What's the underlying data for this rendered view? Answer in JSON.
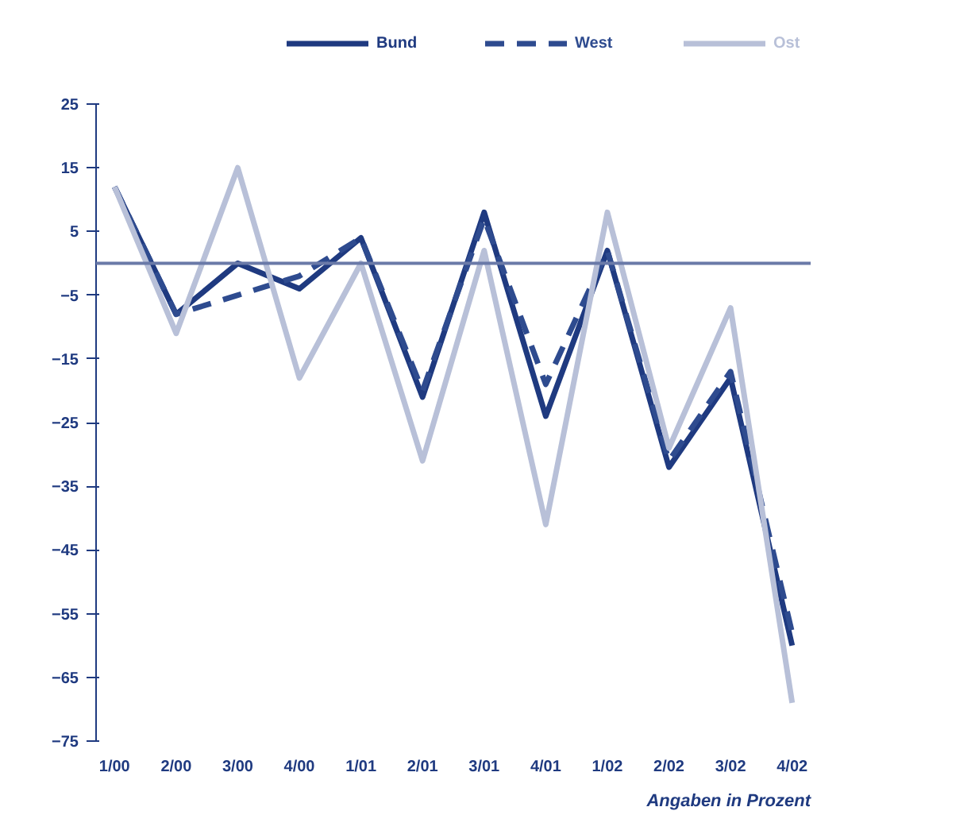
{
  "chart_data": {
    "type": "line",
    "categories": [
      "1/00",
      "2/00",
      "3/00",
      "4/00",
      "1/01",
      "2/01",
      "3/01",
      "4/01",
      "1/02",
      "2/02",
      "3/02",
      "4/02"
    ],
    "series": [
      {
        "name": "Bund",
        "color": "#1f3a80",
        "line_style": "solid",
        "values": [
          12,
          -8,
          0,
          -4,
          4,
          -21,
          8,
          -24,
          2,
          -32,
          -18,
          -60
        ]
      },
      {
        "name": "West",
        "color": "#2e4b8f",
        "line_style": "dashed",
        "values": [
          12,
          -8,
          -5,
          -2,
          4,
          -20,
          7,
          -19,
          2,
          -31,
          -17,
          -58
        ]
      },
      {
        "name": "Ost",
        "color": "#b8c0d8",
        "line_style": "solid",
        "values": [
          12,
          -11,
          15,
          -18,
          0,
          -31,
          2,
          -41,
          8,
          -29,
          -7,
          -69
        ]
      }
    ],
    "ylim": [
      -75,
      25
    ],
    "yticks": [
      25,
      15,
      5,
      -5,
      -15,
      -25,
      -35,
      -45,
      -55,
      -65,
      -75
    ],
    "ref_lines": [
      {
        "axis": "y",
        "value": 0,
        "color": "#6a7aa8"
      }
    ],
    "grid": false,
    "legend": "top",
    "marker": "none",
    "annotations": [
      "Angaben in Prozent"
    ]
  }
}
